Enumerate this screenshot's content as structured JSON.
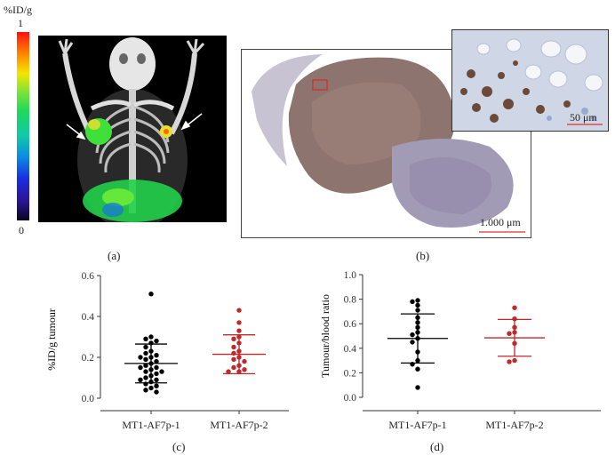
{
  "panel_a": {
    "label": "(a)",
    "colorbar": {
      "unit": "%ID/g",
      "max": "1",
      "min": "0"
    },
    "colors": {
      "background": "#000000",
      "skeleton": "#e8e8e8",
      "hot": "#39d23a"
    }
  },
  "panel_b": {
    "label": "(b)",
    "scale_main": "1.000 μm",
    "scale_inset": "50 μm",
    "colors": {
      "tissue": "#8a6f6a",
      "inset_bg": "#cfd6e6",
      "scalebar": "#e03030"
    }
  },
  "chart_data": [
    {
      "type": "scatter",
      "panel": "(c)",
      "ylabel": "%ID/g tumour",
      "ylim": [
        0,
        0.6
      ],
      "yticks": [
        "0.0",
        "0.2",
        "0.4",
        "0.6"
      ],
      "categories": [
        "MT1-AF7p-1",
        "MT1-AF7p-2"
      ],
      "series": [
        {
          "color": "#000000",
          "mean": 0.17,
          "sd_low": 0.075,
          "sd_high": 0.265,
          "values": [
            0.51,
            0.3,
            0.29,
            0.28,
            0.27,
            0.25,
            0.23,
            0.22,
            0.21,
            0.2,
            0.2,
            0.19,
            0.18,
            0.17,
            0.16,
            0.15,
            0.15,
            0.14,
            0.13,
            0.13,
            0.12,
            0.11,
            0.1,
            0.09,
            0.09,
            0.08,
            0.07,
            0.06,
            0.05,
            0.04,
            0.03
          ]
        },
        {
          "color": "#c0282a",
          "mean": 0.215,
          "sd_low": 0.12,
          "sd_high": 0.31,
          "values": [
            0.43,
            0.37,
            0.33,
            0.3,
            0.29,
            0.27,
            0.25,
            0.23,
            0.22,
            0.2,
            0.19,
            0.18,
            0.16,
            0.15,
            0.14,
            0.13,
            0.13
          ]
        }
      ]
    },
    {
      "type": "scatter",
      "panel": "(d)",
      "ylabel": "Tumour/blood ratio",
      "ylim": [
        0,
        1.0
      ],
      "yticks": [
        "0.0",
        "0.2",
        "0.4",
        "0.6",
        "0.8",
        "1.0"
      ],
      "categories": [
        "MT1-AF7p-1",
        "MT1-AF7p-2"
      ],
      "series": [
        {
          "color": "#000000",
          "mean": 0.48,
          "sd_low": 0.28,
          "sd_high": 0.68,
          "values": [
            0.79,
            0.78,
            0.75,
            0.71,
            0.65,
            0.61,
            0.57,
            0.53,
            0.51,
            0.48,
            0.45,
            0.37,
            0.3,
            0.27,
            0.23,
            0.08
          ]
        },
        {
          "color": "#c0282a",
          "mean": 0.485,
          "sd_low": 0.335,
          "sd_high": 0.635,
          "values": [
            0.73,
            0.64,
            0.57,
            0.53,
            0.52,
            0.44,
            0.3,
            0.29
          ]
        }
      ]
    }
  ]
}
